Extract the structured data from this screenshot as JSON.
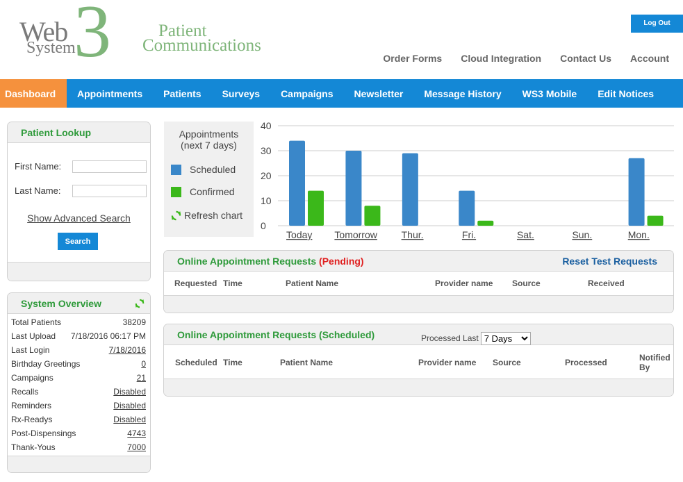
{
  "header": {
    "logo": {
      "web": "Web",
      "system": "System",
      "three": "3"
    },
    "tagline": {
      "line1": "Patient",
      "line2": "Communications"
    },
    "logout_label": "Log Out",
    "top_links": [
      "Order Forms",
      "Cloud Integration",
      "Contact Us",
      "Account"
    ]
  },
  "nav": {
    "tabs": [
      {
        "label": "Dashboard",
        "active": true
      },
      {
        "label": "Appointments"
      },
      {
        "label": "Patients"
      },
      {
        "label": "Surveys"
      },
      {
        "label": "Campaigns"
      },
      {
        "label": "Newsletter"
      },
      {
        "label": "Message History"
      },
      {
        "label": "WS3 Mobile"
      },
      {
        "label": "Edit Notices"
      }
    ]
  },
  "lookup": {
    "title": "Patient Lookup",
    "first_name_label": "First Name:",
    "last_name_label": "Last Name:",
    "first_name_value": "",
    "last_name_value": "",
    "advanced_label": "Show Advanced Search",
    "search_label": "Search"
  },
  "overview": {
    "title": "System Overview",
    "rows": [
      {
        "label": "Total Patients",
        "value": "38209",
        "link": false
      },
      {
        "label": "Last Upload",
        "value": "7/18/2016 06:17 PM",
        "link": false
      },
      {
        "label": "Last Login",
        "value": "7/18/2016",
        "link": true
      },
      {
        "label": "Birthday Greetings",
        "value": "0",
        "link": true
      },
      {
        "label": "Campaigns",
        "value": "21",
        "link": true
      },
      {
        "label": "Recalls",
        "value": "Disabled",
        "link": true
      },
      {
        "label": "Reminders",
        "value": "Disabled",
        "link": true
      },
      {
        "label": "Rx-Readys",
        "value": "Disabled",
        "link": true
      },
      {
        "label": "Post-Dispensings",
        "value": "4743",
        "link": true
      },
      {
        "label": "Thank-Yous",
        "value": "7000",
        "link": true
      }
    ]
  },
  "legend": {
    "title_line1": "Appointments",
    "title_line2": "(next 7 days)",
    "scheduled_label": "Scheduled",
    "confirmed_label": "Confirmed",
    "refresh_label": "Refresh chart"
  },
  "chart_data": {
    "type": "bar",
    "categories": [
      "Today",
      "Tomorrow",
      "Thur.",
      "Fri.",
      "Sat.",
      "Sun.",
      "Mon."
    ],
    "series": [
      {
        "name": "Scheduled",
        "color": "#3a87c9",
        "values": [
          34,
          30,
          29,
          14,
          0,
          0,
          27
        ]
      },
      {
        "name": "Confirmed",
        "color": "#3bb81a",
        "values": [
          14,
          8,
          0,
          2,
          0,
          0,
          4
        ]
      }
    ],
    "ylim": [
      0,
      40
    ],
    "yticks": [
      "0",
      "10",
      "20",
      "30",
      "40"
    ],
    "grid": true,
    "legend": "left"
  },
  "pending": {
    "title": "Online Appointment Requests",
    "status": "(Pending)",
    "reset_label": "Reset Test Requests",
    "columns": [
      "Requested",
      "Time",
      "Patient Name",
      "Provider name",
      "Source",
      "Received"
    ]
  },
  "scheduled": {
    "title": "Online Appointment Requests",
    "status": "(Scheduled)",
    "processed_label": "Processed Last",
    "processed_value": "7 Days",
    "columns": [
      "Scheduled",
      "Time",
      "Patient Name",
      "Provider name",
      "Source",
      "Processed",
      "Notified",
      "By"
    ]
  },
  "colors": {
    "nav_blue": "#1488d6",
    "active_tab": "#f5913d",
    "accent_green": "#2e9a3a",
    "logo_green": "#7fb57a",
    "pending_red": "#e02020"
  }
}
